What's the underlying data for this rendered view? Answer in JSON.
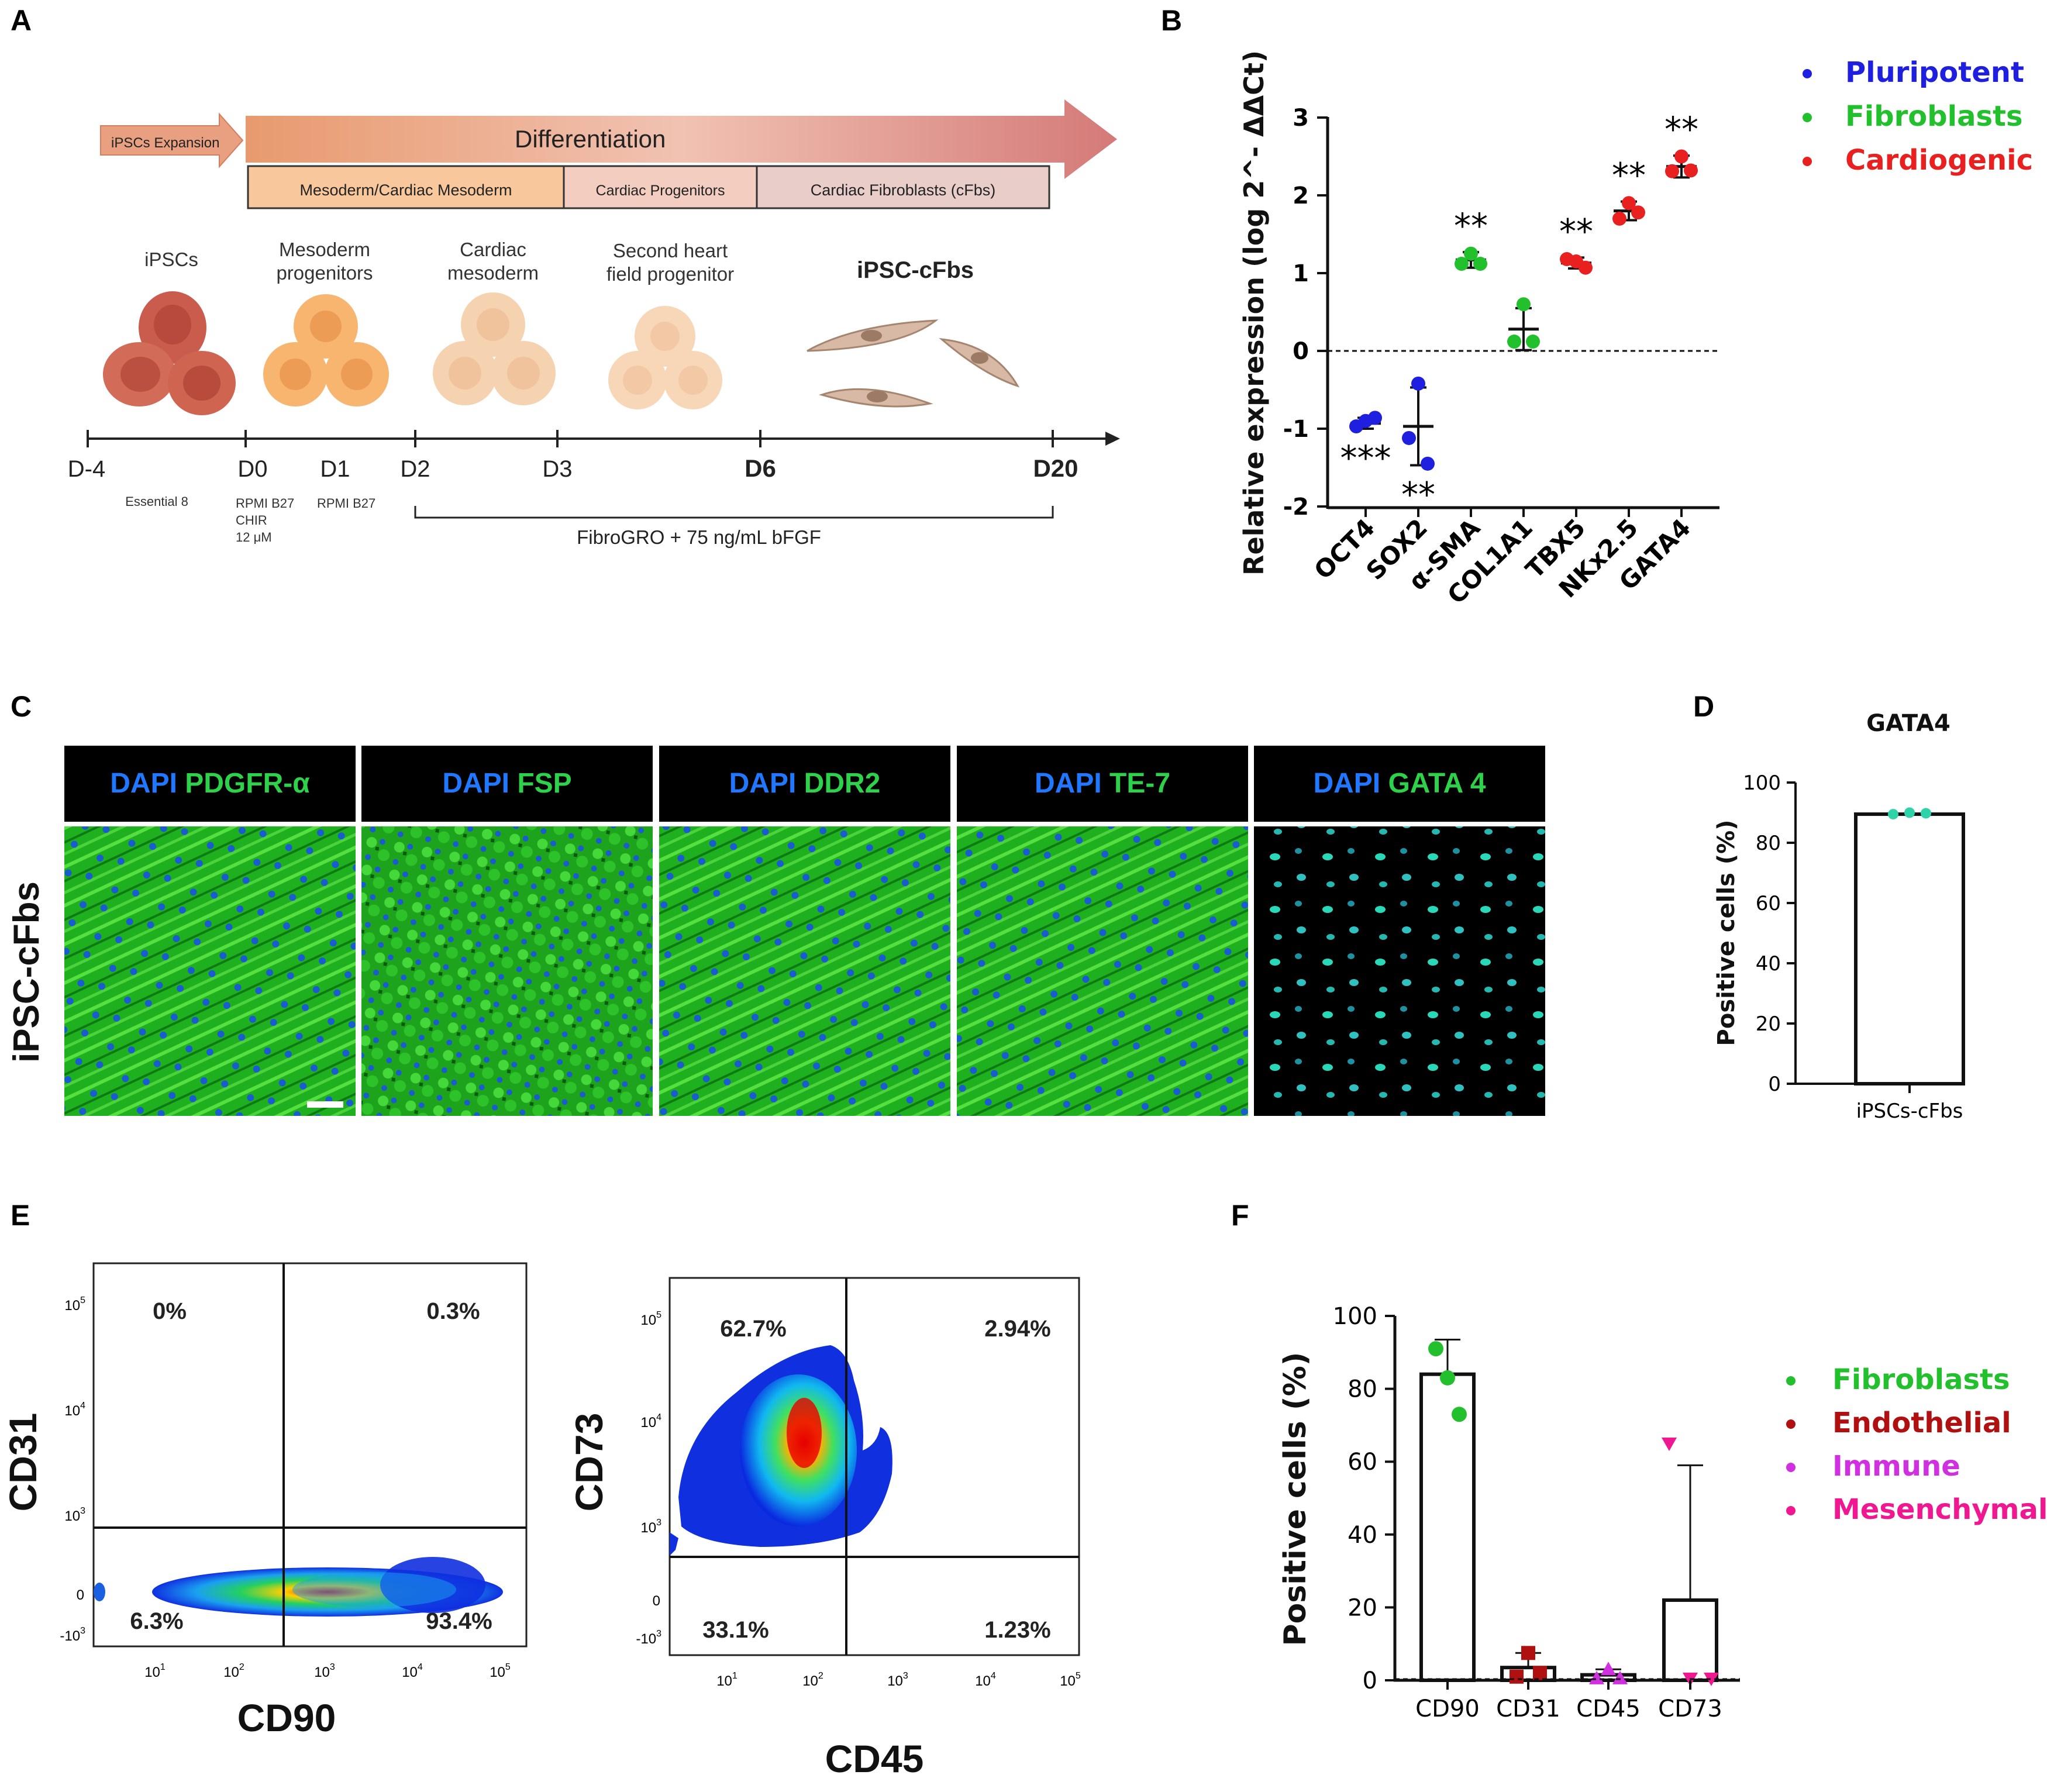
{
  "panel_labels": {
    "a": "A",
    "b": "B",
    "c": "C",
    "d": "D",
    "e": "E",
    "f": "F"
  },
  "panelA": {
    "expansion": "iPSCs Expansion",
    "differentiation": "Differentiation",
    "stage1": "Mesoderm/Cardiac Mesoderm",
    "stage2": "Cardiac Progenitors",
    "stage3": "Cardiac Fibroblasts (cFbs)",
    "cells": [
      {
        "line1": "iPSCs",
        "line2": ""
      },
      {
        "line1": "Mesoderm",
        "line2": "progenitors"
      },
      {
        "line1": "Cardiac",
        "line2": "mesoderm"
      },
      {
        "line1": "Second heart",
        "line2": "field progenitor"
      },
      {
        "line1": "iPSC-cFbs",
        "line2": ""
      }
    ],
    "days": [
      "D-4",
      "D0",
      "D1",
      "D2",
      "D3",
      "D6",
      "D20"
    ],
    "media": {
      "essential": "Essential 8",
      "d0_l1": "RPMI B27",
      "d0_l2": "CHIR",
      "d0_l3": "12 μM",
      "d1": "RPMI B27",
      "fibro": "FibroGRO  + 75 ng/mL bFGF"
    }
  },
  "panelC": {
    "row_label": "iPSC-cFbs",
    "dapi": "DAPI",
    "markers": [
      "PDGFR-α",
      "FSP",
      "DDR2",
      "TE-7",
      "GATA 4"
    ]
  },
  "panelE": {
    "plot1": {
      "xlabel": "CD90",
      "ylabel": "CD31",
      "q_ul": "0%",
      "q_ur": "0.3%",
      "q_ll": "6.3%",
      "q_lr": "93.4%"
    },
    "plot2": {
      "xlabel": "CD45",
      "ylabel": "CD73",
      "q_ul": "62.7%",
      "q_ur": "2.94%",
      "q_ll": "33.1%",
      "q_lr": "1.23%"
    },
    "xticks": [
      "10",
      "10",
      "10",
      "10",
      "10"
    ],
    "xtick_exp": [
      "1",
      "2",
      "3",
      "4",
      "5"
    ],
    "yticks": {
      "t5": "10",
      "t4": "10",
      "t3": "10",
      "zero": "0",
      "neg": "-10"
    },
    "ytick_exp": {
      "t5": "5",
      "t4": "4",
      "t3": "3",
      "neg": "3"
    }
  },
  "chart_data": [
    {
      "type": "scatter",
      "panel": "B",
      "ylabel": "Relative expression (log 2^- ΔΔCt)",
      "ylim": [
        -2,
        3
      ],
      "yticks": [
        "-2",
        "-1",
        "0",
        "1",
        "2",
        "3"
      ],
      "categories": [
        "OCT4",
        "SOX2",
        "α-SMA",
        "COL1A1",
        "TBX5",
        "NKx2.5",
        "GATA4"
      ],
      "means": [
        -0.93,
        -0.97,
        1.17,
        0.28,
        1.13,
        1.8,
        2.37
      ],
      "sd": [
        0.07,
        0.5,
        0.1,
        0.27,
        0.07,
        0.12,
        0.14
      ],
      "points": [
        [
          -0.9,
          -0.97,
          -0.86
        ],
        [
          -0.42,
          -1.12,
          -1.45
        ],
        [
          1.25,
          1.12,
          1.12
        ],
        [
          0.6,
          0.12,
          0.12
        ],
        [
          1.15,
          1.18,
          1.07
        ],
        [
          1.9,
          1.7,
          1.78
        ],
        [
          2.5,
          2.31,
          2.32
        ]
      ],
      "significance": [
        "***",
        "**",
        "**",
        "",
        "**",
        "**",
        "**"
      ],
      "groups": [
        "Pluripotent",
        "Pluripotent",
        "Fibroblasts",
        "Fibroblasts",
        "Cardiogenic",
        "Cardiogenic",
        "Cardiogenic"
      ],
      "legend": [
        {
          "name": "Pluripotent",
          "color": "#1f1fe0"
        },
        {
          "name": "Fibroblasts",
          "color": "#22c02c"
        },
        {
          "name": "Cardiogenic",
          "color": "#e82020"
        }
      ],
      "legend_position": "top-right"
    },
    {
      "type": "bar",
      "panel": "D",
      "title": "GATA4",
      "ylabel": "Positive cells (%)",
      "categories": [
        "iPSCs-cFbs"
      ],
      "values": [
        89.5
      ],
      "points": [
        [
          89.5,
          90,
          89.8
        ]
      ],
      "ylim": [
        0,
        100
      ],
      "yticks": [
        "0",
        "20",
        "40",
        "60",
        "80",
        "100"
      ],
      "point_color": "#2ed3a8"
    },
    {
      "type": "bar",
      "panel": "F",
      "ylabel": "Positive cells (%)",
      "categories": [
        "CD90",
        "CD31",
        "CD45",
        "CD73"
      ],
      "values": [
        84,
        3.5,
        1.5,
        22
      ],
      "sd": [
        9.5,
        4,
        1.5,
        37
      ],
      "points": [
        [
          91,
          83,
          73
        ],
        [
          1,
          7.5,
          2
        ],
        [
          0.5,
          3,
          0.5
        ],
        [
          65,
          0.5,
          0.5
        ]
      ],
      "ylim": [
        0,
        100
      ],
      "yticks": [
        "0",
        "20",
        "40",
        "60",
        "80",
        "100"
      ],
      "colors": [
        "#22c02c",
        "#b01010",
        "#d030e0",
        "#f01890"
      ],
      "legend": [
        {
          "name": "Fibroblasts",
          "color": "#22c02c"
        },
        {
          "name": "Endothelial",
          "color": "#b01010"
        },
        {
          "name": "Immune",
          "color": "#d030e0"
        },
        {
          "name": "Mesenchymal",
          "color": "#f01890"
        }
      ],
      "legend_position": "right"
    }
  ]
}
